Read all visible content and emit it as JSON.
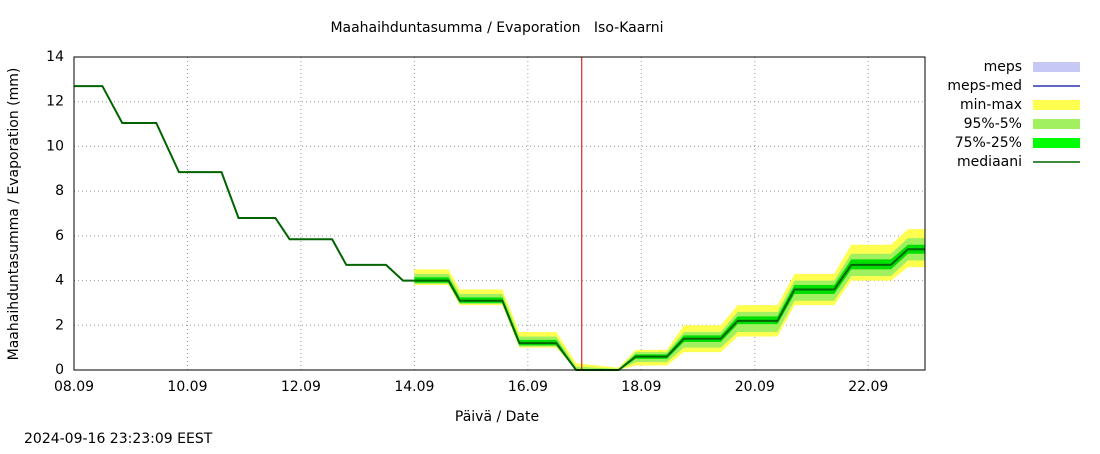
{
  "chart_data": {
    "type": "band-line",
    "title": "Maahaihduntasumma / Evaporation   Iso-Kaarni",
    "x_label": "Päivä / Date",
    "y_label": "Maahaihduntasumma / Evaporation (mm)",
    "footer": "2024-09-16 23:23:09 EEST",
    "xlim": [
      0,
      15
    ],
    "xticks": [
      {
        "value": 0,
        "label": "08.09"
      },
      {
        "value": 2,
        "label": "10.09"
      },
      {
        "value": 4,
        "label": "12.09"
      },
      {
        "value": 6,
        "label": "14.09"
      },
      {
        "value": 8,
        "label": "16.09"
      },
      {
        "value": 10,
        "label": "18.09"
      },
      {
        "value": 12,
        "label": "20.09"
      },
      {
        "value": 14,
        "label": "22.09"
      }
    ],
    "ylim": [
      0,
      14
    ],
    "yticks": [
      0,
      2,
      4,
      6,
      8,
      10,
      12,
      14
    ],
    "grid": true,
    "now_line": {
      "x": 8.95,
      "color": "#cc0000"
    },
    "x": [
      0,
      0.5,
      0.85,
      1.45,
      1.85,
      2.6,
      2.9,
      3.55,
      3.8,
      4.55,
      4.8,
      5.5,
      5.8,
      6.0,
      6.6,
      6.8,
      7.55,
      7.85,
      8.5,
      8.85,
      9.6,
      9.9,
      10.45,
      10.75,
      11.4,
      11.7,
      12.4,
      12.7,
      13.4,
      13.7,
      14.4,
      14.7,
      15
    ],
    "bands": [
      {
        "name": "min-max",
        "color": "#ffff50",
        "high": [
          null,
          null,
          null,
          null,
          null,
          null,
          null,
          null,
          null,
          null,
          null,
          null,
          null,
          4.5,
          4.5,
          3.6,
          3.6,
          1.7,
          1.7,
          0.3,
          0.1,
          0.9,
          0.9,
          2.0,
          2.0,
          2.9,
          2.9,
          4.3,
          4.3,
          5.6,
          5.6,
          6.3,
          6.3
        ],
        "low": [
          null,
          null,
          null,
          null,
          null,
          null,
          null,
          null,
          null,
          null,
          null,
          null,
          null,
          3.8,
          3.8,
          2.9,
          2.9,
          1.0,
          1.0,
          0,
          0,
          0.2,
          0.2,
          0.8,
          0.8,
          1.5,
          1.5,
          2.9,
          2.9,
          4.0,
          4.0,
          4.6,
          4.6
        ]
      },
      {
        "name": "95%-5%",
        "color": "#a0f060",
        "high": [
          null,
          null,
          null,
          null,
          null,
          null,
          null,
          null,
          null,
          null,
          null,
          null,
          null,
          4.3,
          4.3,
          3.4,
          3.4,
          1.5,
          1.5,
          0.15,
          0.05,
          0.8,
          0.8,
          1.7,
          1.7,
          2.6,
          2.6,
          4.0,
          4.0,
          5.2,
          5.2,
          5.9,
          5.9
        ],
        "low": [
          null,
          null,
          null,
          null,
          null,
          null,
          null,
          null,
          null,
          null,
          null,
          null,
          null,
          3.85,
          3.85,
          2.95,
          2.95,
          1.05,
          1.05,
          0,
          0,
          0.35,
          0.35,
          1.0,
          1.0,
          1.7,
          1.7,
          3.1,
          3.1,
          4.2,
          4.2,
          4.9,
          4.9
        ]
      },
      {
        "name": "75%-25%",
        "color": "#00e000",
        "high": [
          null,
          null,
          null,
          null,
          null,
          null,
          null,
          null,
          null,
          null,
          null,
          null,
          null,
          4.15,
          4.15,
          3.25,
          3.25,
          1.35,
          1.35,
          0.05,
          0.02,
          0.7,
          0.7,
          1.55,
          1.55,
          2.4,
          2.4,
          3.8,
          3.8,
          4.95,
          4.95,
          5.6,
          5.6
        ],
        "low": [
          null,
          null,
          null,
          null,
          null,
          null,
          null,
          null,
          null,
          null,
          null,
          null,
          null,
          3.9,
          3.9,
          3.0,
          3.0,
          1.1,
          1.1,
          0,
          0,
          0.5,
          0.5,
          1.25,
          1.25,
          2.05,
          2.05,
          3.4,
          3.4,
          4.5,
          4.5,
          5.2,
          5.2
        ]
      }
    ],
    "series": [
      {
        "name": "mediaani",
        "color": "#006400",
        "values": [
          12.7,
          12.7,
          11.05,
          11.05,
          8.85,
          8.85,
          6.8,
          6.8,
          5.85,
          5.85,
          4.7,
          4.7,
          4.0,
          4.0,
          4.0,
          3.1,
          3.1,
          1.2,
          1.2,
          0,
          0,
          0.6,
          0.6,
          1.4,
          1.4,
          2.2,
          2.2,
          3.6,
          3.6,
          4.7,
          4.7,
          5.4,
          5.4
        ]
      }
    ],
    "legend": [
      {
        "label": "meps",
        "color": "#c8c8f4",
        "kind": "box"
      },
      {
        "label": "meps-med",
        "color": "#3030b0",
        "kind": "line"
      },
      {
        "label": "min-max",
        "color": "#ffff50",
        "kind": "box"
      },
      {
        "label": "95%-5%",
        "color": "#a0f060",
        "kind": "box"
      },
      {
        "label": "75%-25%",
        "color": "#00ff00",
        "kind": "box"
      },
      {
        "label": "mediaani",
        "color": "#006400",
        "kind": "line"
      }
    ]
  }
}
